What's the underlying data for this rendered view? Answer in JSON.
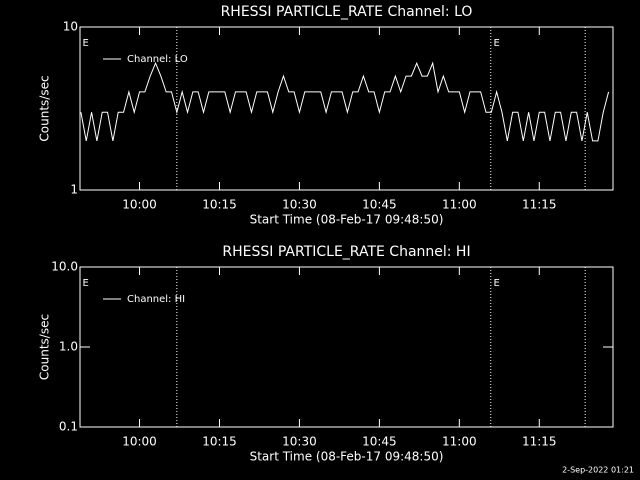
{
  "chart_data": [
    {
      "type": "line",
      "title": "RHESSI PARTICLE_RATE Channel: LO",
      "xlabel": "Start Time (08-Feb-17 09:48:50)",
      "ylabel": "Counts/sec",
      "log_y": true,
      "ylim": [
        1,
        10
      ],
      "yticks": [
        1,
        10
      ],
      "xlim": [
        588.83,
        688.83
      ],
      "xticks": [
        {
          "value": 600,
          "label": "10:00"
        },
        {
          "value": 615,
          "label": "10:15"
        },
        {
          "value": 630,
          "label": "10:30"
        },
        {
          "value": 645,
          "label": "10:45"
        },
        {
          "value": 660,
          "label": "11:00"
        },
        {
          "value": 675,
          "label": "11:15"
        }
      ],
      "vlines": [
        607,
        665.9,
        683.6
      ],
      "events": [
        {
          "x": 589.3,
          "label": "E"
        },
        {
          "x": 666.4,
          "label": "E"
        }
      ],
      "legend": "upper left",
      "series": [
        {
          "name": "Channel: LO",
          "color": "#ffffff",
          "x": [
            589,
            590,
            591,
            592,
            593,
            594,
            595,
            596,
            597,
            598,
            599,
            600,
            601,
            602,
            603,
            604,
            605,
            606,
            607,
            608,
            609,
            610,
            611,
            612,
            613,
            614,
            615,
            616,
            617,
            618,
            619,
            620,
            621,
            622,
            623,
            624,
            625,
            626,
            627,
            628,
            629,
            630,
            631,
            632,
            633,
            634,
            635,
            636,
            637,
            638,
            639,
            640,
            641,
            642,
            643,
            644,
            645,
            646,
            647,
            648,
            649,
            650,
            651,
            652,
            653,
            654,
            655,
            656,
            657,
            658,
            659,
            660,
            661,
            662,
            663,
            664,
            665,
            666,
            667,
            668,
            669,
            670,
            671,
            672,
            673,
            674,
            675,
            676,
            677,
            678,
            679,
            680,
            681,
            682,
            683,
            684,
            685,
            686,
            687,
            688
          ],
          "values": [
            3,
            2,
            3,
            2,
            3,
            3,
            2,
            3,
            3,
            4,
            3,
            4,
            4,
            5,
            6,
            5,
            4,
            4,
            3,
            4,
            3,
            4,
            4,
            3,
            4,
            4,
            4,
            4,
            3,
            4,
            4,
            4,
            3,
            4,
            4,
            4,
            3,
            4,
            5,
            4,
            4,
            3,
            4,
            4,
            4,
            4,
            3,
            4,
            4,
            4,
            3,
            4,
            4,
            5,
            4,
            4,
            3,
            4,
            4,
            5,
            4,
            5,
            5,
            6,
            5,
            5,
            6,
            4,
            5,
            4,
            4,
            4,
            3,
            4,
            4,
            4,
            3,
            3,
            4,
            3,
            2,
            3,
            3,
            2,
            3,
            2,
            3,
            3,
            2,
            3,
            3,
            2,
            3,
            3,
            2,
            3,
            2,
            2,
            3,
            4
          ]
        }
      ]
    },
    {
      "type": "line",
      "title": "RHESSI PARTICLE_RATE Channel: HI",
      "xlabel": "Start Time (08-Feb-17 09:48:50)",
      "ylabel": "Counts/sec",
      "log_y": true,
      "ylim": [
        0.1,
        10
      ],
      "yticks": [
        {
          "value": 0.1,
          "label": "0.1"
        },
        {
          "value": 1,
          "label": "1.0"
        },
        {
          "value": 10,
          "label": "10.0"
        }
      ],
      "xlim": [
        588.83,
        688.83
      ],
      "xticks": [
        {
          "value": 600,
          "label": "10:00"
        },
        {
          "value": 615,
          "label": "10:15"
        },
        {
          "value": 630,
          "label": "10:30"
        },
        {
          "value": 645,
          "label": "10:45"
        },
        {
          "value": 660,
          "label": "11:00"
        },
        {
          "value": 675,
          "label": "11:15"
        }
      ],
      "vlines": [
        607,
        665.9,
        683.6
      ],
      "events": [
        {
          "x": 589.3,
          "label": "E"
        },
        {
          "x": 666.4,
          "label": "E"
        }
      ],
      "legend": "upper left",
      "series": [
        {
          "name": "Channel: HI",
          "color": "#ffffff",
          "x": [],
          "values": []
        }
      ]
    }
  ],
  "footer": "2-Sep-2022 01:21"
}
